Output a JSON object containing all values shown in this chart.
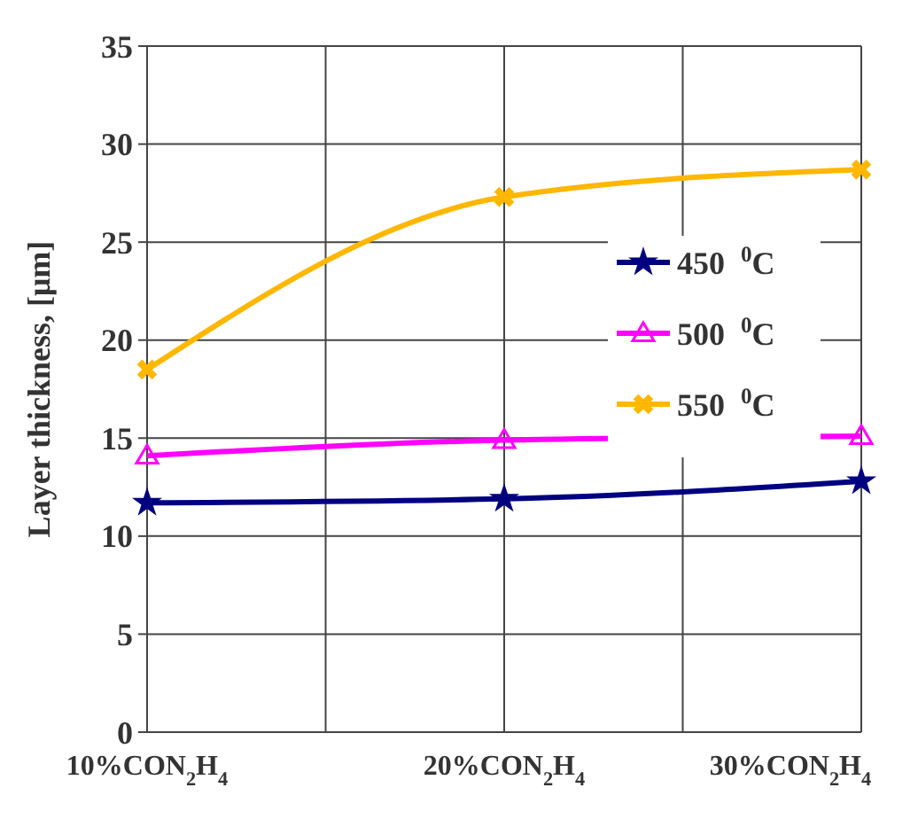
{
  "chart_data": {
    "type": "line",
    "ylabel": "Layer thickness, [μm]",
    "categories": [
      "10%CON$_{2}$H$_{4}$",
      "20%CON$_{2}$H$_{4}$",
      "30%CON$_{2}$H$_{4}$"
    ],
    "series": [
      {
        "name": "450  $^{0}$C",
        "color": "#000080",
        "marker": "star",
        "values": [
          11.7,
          11.9,
          12.8
        ]
      },
      {
        "name": "500  $^{0}$C",
        "color": "#ff00ff",
        "marker": "triangle",
        "values": [
          14.1,
          14.9,
          15.1
        ]
      },
      {
        "name": "550  $^{0}$C",
        "color": "#ffb700",
        "marker": "cross",
        "values": [
          18.5,
          27.3,
          28.7
        ]
      }
    ],
    "ylim": [
      0,
      35
    ],
    "yticks": [
      0,
      5,
      10,
      15,
      20,
      25,
      30,
      35
    ],
    "grid": true,
    "legend": "right"
  }
}
